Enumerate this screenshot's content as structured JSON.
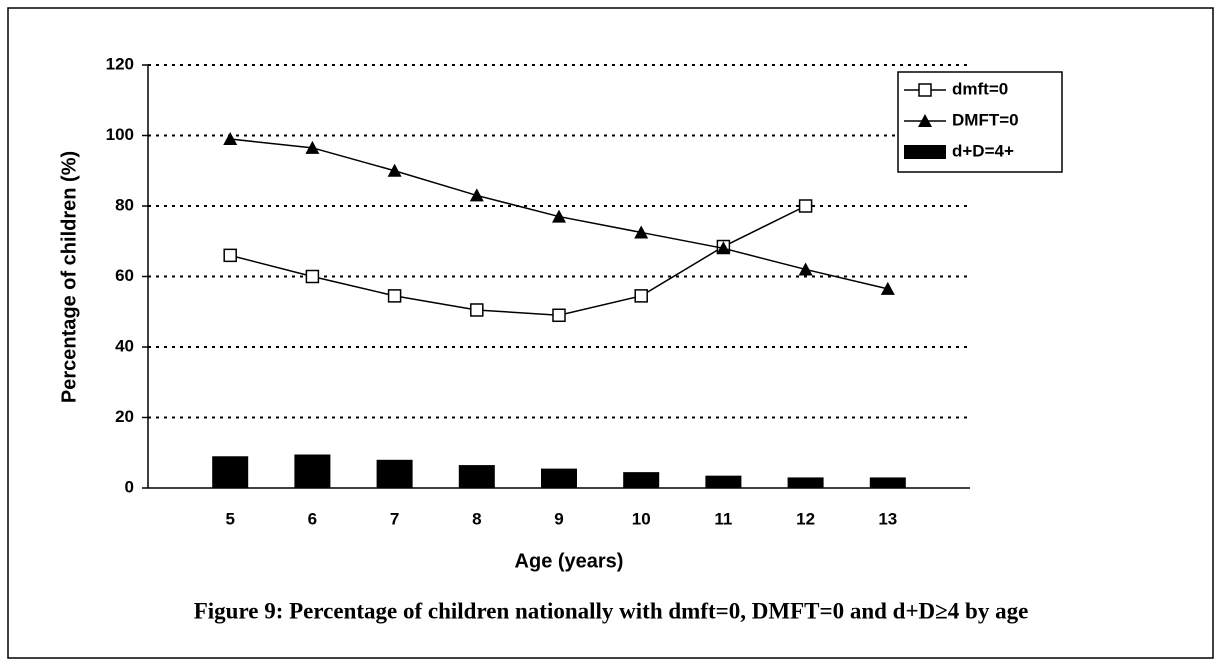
{
  "chart_data": {
    "type": "bar-line",
    "caption": "Figure 9: Percentage of children nationally with dmft=0, DMFT=0 and d+D≥4 by age",
    "x_label": "Age (years)",
    "y_label": "Percentage of children (%)",
    "categories": [
      "5",
      "6",
      "7",
      "8",
      "9",
      "10",
      "11",
      "12",
      "13"
    ],
    "series": [
      {
        "name": "dmft=0",
        "type": "line",
        "marker": "square",
        "color": "#000000",
        "values": [
          66,
          60,
          54.5,
          50.5,
          49,
          54.5,
          68.5,
          80,
          null
        ]
      },
      {
        "name": "DMFT=0",
        "type": "line",
        "marker": "triangle",
        "color": "#000000",
        "values": [
          99,
          96.5,
          90,
          83,
          77,
          72.5,
          68,
          62,
          56.5
        ]
      },
      {
        "name": "d+D=4+",
        "type": "bar",
        "color": "#000000",
        "values": [
          9,
          9.5,
          8,
          6.5,
          5.5,
          4.5,
          3.5,
          3,
          3
        ]
      }
    ],
    "ylim": [
      0,
      120
    ],
    "yticks": [
      0,
      20,
      40,
      60,
      80,
      100,
      120
    ],
    "grid": true,
    "legend": "top-right"
  }
}
